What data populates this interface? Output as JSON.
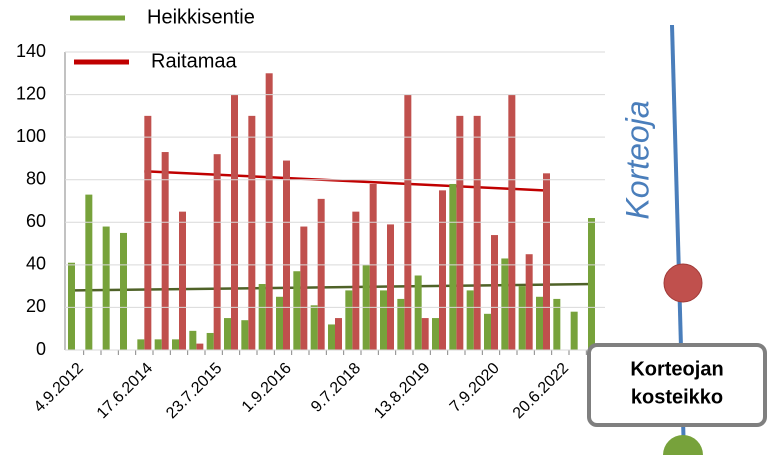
{
  "chart_data": {
    "type": "bar",
    "categories": [
      "4.9.2012",
      null,
      null,
      null,
      "17.6.2014",
      null,
      null,
      null,
      "23.7.2015",
      null,
      null,
      null,
      "1.9.2016",
      null,
      null,
      null,
      "9.7.2018",
      null,
      null,
      null,
      "13.8.2019",
      null,
      null,
      null,
      "7.9.2020",
      null,
      null,
      null,
      "20.6.2022",
      null,
      null
    ],
    "series": [
      {
        "name": "Heikkisentie",
        "color": "#77a23b",
        "trend_color": "#4f6228",
        "trend": [
          28,
          31
        ],
        "values": [
          41,
          73,
          58,
          55,
          5,
          5,
          5,
          9,
          8,
          15,
          14,
          31,
          25,
          37,
          21,
          12,
          28,
          40,
          28,
          24,
          35,
          15,
          78,
          28,
          17,
          43,
          30,
          25,
          24,
          18,
          62
        ]
      },
      {
        "name": "Raitamaa",
        "color": "#c0504d",
        "trend_color": "#c00000",
        "trend": [
          84,
          75
        ],
        "values": [
          null,
          null,
          null,
          null,
          110,
          93,
          65,
          3,
          92,
          120,
          110,
          130,
          89,
          58,
          71,
          15,
          65,
          78,
          59,
          120,
          15,
          75,
          110,
          110,
          54,
          120,
          45,
          83,
          null,
          null,
          null
        ]
      }
    ],
    "ylim": [
      0,
      140
    ],
    "yticks": [
      0,
      20,
      40,
      60,
      80,
      100,
      120,
      140
    ],
    "grid": true
  },
  "diagram": {
    "stream": "Korteoja",
    "site": [
      "Korteojan",
      "kosteikko"
    ]
  }
}
